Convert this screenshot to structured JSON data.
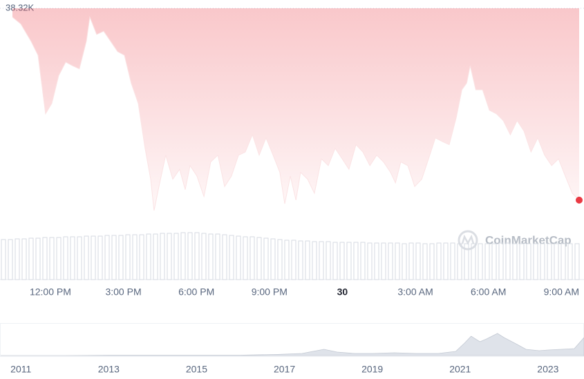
{
  "chart_data": [
    {
      "type": "area",
      "x": [
        10.44,
        10.78,
        11.2,
        11.49,
        11.8,
        12.06,
        12.34,
        12.63,
        12.91,
        13.19,
        13.48,
        13.62,
        13.9,
        14.19,
        14.47,
        14.76,
        15.04,
        15.32,
        15.61,
        15.89,
        16.12,
        16.26,
        16.46,
        16.74,
        17.03,
        17.31,
        17.54,
        17.74,
        18.02,
        18.31,
        18.59,
        18.88,
        19.16,
        19.44,
        19.73,
        20.01,
        20.3,
        20.58,
        20.86,
        21.15,
        21.43,
        21.63,
        21.86,
        22.09,
        22.28,
        22.57,
        22.85,
        23.14,
        23.42,
        23.7,
        23.99,
        24.27,
        24.56,
        24.84,
        25.13,
        25.41,
        25.69,
        25.98,
        26.18,
        26.4,
        26.69,
        26.97,
        27.26,
        27.54,
        27.82,
        28.11,
        28.39,
        28.68,
        28.91,
        29.11,
        29.25,
        29.48,
        29.76,
        30.04,
        30.33,
        30.61,
        30.9,
        31.18,
        31.46,
        31.75,
        32.03,
        32.31,
        32.6,
        32.88,
        33.16,
        33.45,
        33.73
      ],
      "values": [
        38303,
        38290,
        38257,
        38230,
        38118,
        38138,
        38191,
        38217,
        38210,
        38204,
        38257,
        38303,
        38270,
        38276,
        38257,
        38237,
        38230,
        38177,
        38138,
        38052,
        37993,
        37933,
        37979,
        38039,
        37993,
        38012,
        37973,
        38019,
        37999,
        37960,
        38026,
        38039,
        37979,
        37999,
        38039,
        38045,
        38078,
        38039,
        38072,
        38039,
        38006,
        37946,
        37999,
        37953,
        38006,
        37993,
        37966,
        38032,
        38019,
        38052,
        38032,
        38012,
        38059,
        38045,
        38019,
        38039,
        38026,
        38006,
        37986,
        38026,
        38019,
        37979,
        37993,
        38032,
        38072,
        38065,
        38059,
        38111,
        38164,
        38177,
        38210,
        38164,
        38164,
        38125,
        38118,
        38105,
        38078,
        38105,
        38085,
        38045,
        38072,
        38039,
        38019,
        38032,
        37999,
        37966,
        37953
      ],
      "color": "#ea3943",
      "xlim": [
        10.44,
        33.73
      ],
      "ylim": [
        37900,
        38320
      ],
      "yticks": [
        {
          "value": 38320,
          "label": "38.32K"
        }
      ],
      "xticks": [
        {
          "value": 12,
          "label": "12:00 PM"
        },
        {
          "value": 15,
          "label": "3:00 PM"
        },
        {
          "value": 18,
          "label": "6:00 PM"
        },
        {
          "value": 21,
          "label": "9:00 PM"
        },
        {
          "value": 24,
          "label": "30",
          "bold": true
        },
        {
          "value": 27,
          "label": "3:00 AM"
        },
        {
          "value": 30,
          "label": "6:00 AM"
        },
        {
          "value": 33,
          "label": "9:00 AM"
        }
      ],
      "watermark": "CoinMarketCap"
    },
    {
      "type": "bar",
      "values": [
        58,
        58,
        59,
        59,
        60,
        60,
        61,
        61,
        61,
        62,
        62,
        62,
        63,
        63,
        63,
        64,
        64,
        64,
        65,
        65,
        65,
        66,
        66,
        67,
        67,
        67,
        68,
        68,
        68,
        67,
        66,
        66,
        65,
        64,
        63,
        62,
        62,
        61,
        60,
        59,
        58,
        57,
        57,
        56,
        56,
        55,
        55,
        55,
        54,
        54,
        54,
        54,
        54,
        53,
        53,
        53,
        53,
        53,
        52,
        53,
        53,
        52,
        52,
        53,
        53,
        53,
        52,
        52,
        52,
        52,
        52,
        52,
        53,
        53,
        52,
        52,
        52,
        52,
        52,
        52,
        52,
        52,
        52,
        52
      ],
      "color": "#d6dae2",
      "ylim": [
        0,
        100
      ]
    },
    {
      "type": "navigator",
      "x": [
        2010.54,
        2011,
        2012,
        2013,
        2014,
        2015,
        2016,
        2016.8,
        2017.4,
        2017.9,
        2018.2,
        2018.6,
        2019,
        2019.5,
        2020,
        2020.5,
        2020.9,
        2021.1,
        2021.25,
        2021.45,
        2021.6,
        2021.85,
        2022.0,
        2022.3,
        2022.5,
        2022.8,
        2023.0,
        2023.3,
        2023.6,
        2023.82
      ],
      "values": [
        0,
        0,
        0,
        0.5,
        0.5,
        0.5,
        0.5,
        1.5,
        3,
        9,
        5,
        3,
        3,
        4,
        3,
        3,
        6,
        18,
        28,
        20,
        24,
        32,
        26,
        16,
        9,
        7,
        8,
        9,
        10,
        26
      ],
      "color": "#dfe3ea",
      "xlim": [
        2010.54,
        2023.82
      ],
      "ylim": [
        0,
        45
      ],
      "xticks": [
        2011,
        2013,
        2015,
        2017,
        2019,
        2021,
        2023
      ]
    }
  ]
}
